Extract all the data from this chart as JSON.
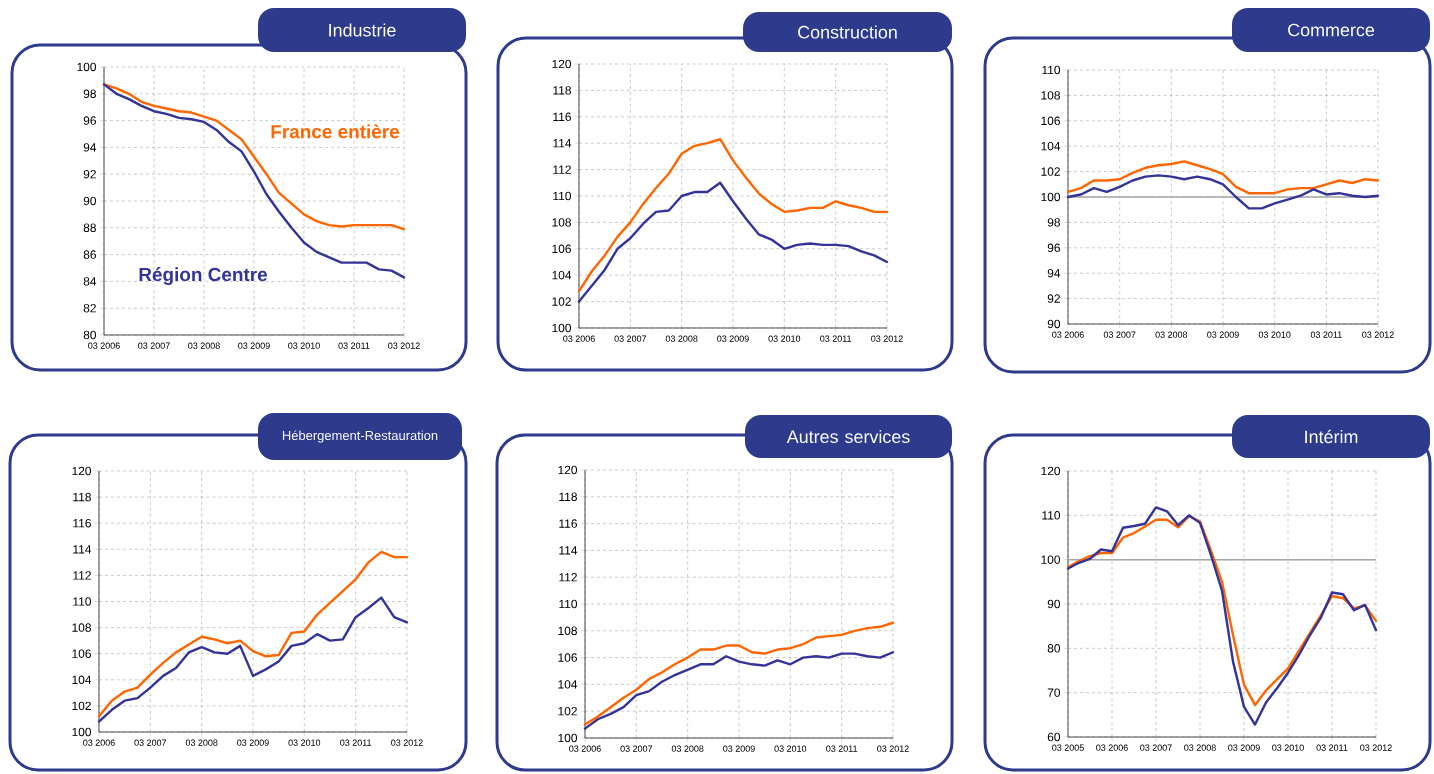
{
  "chart_data": [
    {
      "type": "line",
      "title": "Industrie",
      "grid": true,
      "x": [
        "2006-03",
        "2006-06",
        "2006-09",
        "2006-12",
        "2007-03",
        "2007-06",
        "2007-09",
        "2007-12",
        "2008-03",
        "2008-06",
        "2008-09",
        "2008-12",
        "2009-03",
        "2009-06",
        "2009-09",
        "2009-12",
        "2010-03",
        "2010-06",
        "2010-09",
        "2010-12",
        "2011-03",
        "2011-06",
        "2011-09",
        "2011-12",
        "2012-03"
      ],
      "xlim": [
        "2006-03",
        "2012-03"
      ],
      "xticks": [
        {
          "value": "2006-03",
          "label": "03 2006"
        },
        {
          "value": "2007-03",
          "label": "03 2007"
        },
        {
          "value": "2008-03",
          "label": "03 2008"
        },
        {
          "value": "2009-03",
          "label": "03 2009"
        },
        {
          "value": "2010-03",
          "label": "03 2010"
        },
        {
          "value": "2011-03",
          "label": "03 2011"
        },
        {
          "value": "2012-03",
          "label": "03 2012"
        }
      ],
      "ylim": [
        80,
        100
      ],
      "yticks": [
        80,
        82,
        84,
        86,
        88,
        90,
        92,
        94,
        96,
        98,
        100
      ],
      "series": [
        {
          "name": "France entière",
          "color": "#ff6600",
          "values": [
            98.7,
            98.4,
            98.0,
            97.4,
            97.1,
            96.9,
            96.7,
            96.6,
            96.3,
            96.0,
            95.3,
            94.6,
            93.3,
            92.0,
            90.6,
            89.8,
            89.0,
            88.5,
            88.2,
            88.1,
            88.2,
            88.2,
            88.2,
            88.2,
            87.9
          ]
        },
        {
          "name": "Région Centre",
          "color": "#333399",
          "values": [
            98.7,
            98.0,
            97.6,
            97.1,
            96.7,
            96.5,
            96.2,
            96.1,
            95.9,
            95.3,
            94.4,
            93.7,
            92.2,
            90.5,
            89.2,
            88.0,
            86.9,
            86.2,
            85.8,
            85.4,
            85.4,
            85.4,
            84.9,
            84.8,
            84.3
          ]
        }
      ]
    },
    {
      "type": "line",
      "title": "Construction",
      "grid": true,
      "x": [
        "2006-03",
        "2006-06",
        "2006-09",
        "2006-12",
        "2007-03",
        "2007-06",
        "2007-09",
        "2007-12",
        "2008-03",
        "2008-06",
        "2008-09",
        "2008-12",
        "2009-03",
        "2009-06",
        "2009-09",
        "2009-12",
        "2010-03",
        "2010-06",
        "2010-09",
        "2010-12",
        "2011-03",
        "2011-06",
        "2011-09",
        "2011-12",
        "2012-03"
      ],
      "xlim": [
        "2006-03",
        "2012-03"
      ],
      "xticks": [
        {
          "value": "2006-03",
          "label": "03 2006"
        },
        {
          "value": "2007-03",
          "label": "03 2007"
        },
        {
          "value": "2008-03",
          "label": "03 2008"
        },
        {
          "value": "2009-03",
          "label": "03 2009"
        },
        {
          "value": "2010-03",
          "label": "03 2010"
        },
        {
          "value": "2011-03",
          "label": "03 2011"
        },
        {
          "value": "2012-03",
          "label": "03 2012"
        }
      ],
      "ylim": [
        100,
        120
      ],
      "yticks": [
        100,
        102,
        104,
        106,
        108,
        110,
        112,
        114,
        116,
        118,
        120
      ],
      "series": [
        {
          "color": "#ff6600",
          "values": [
            102.8,
            104.3,
            105.5,
            106.9,
            108.0,
            109.4,
            110.6,
            111.7,
            113.2,
            113.8,
            114.0,
            114.3,
            112.7,
            111.4,
            110.2,
            109.4,
            108.8,
            108.9,
            109.1,
            109.1,
            109.6,
            109.3,
            109.1,
            108.8,
            108.8
          ]
        },
        {
          "color": "#333399",
          "values": [
            102.0,
            103.2,
            104.4,
            106.0,
            106.8,
            107.9,
            108.8,
            108.9,
            110.0,
            110.3,
            110.3,
            111.0,
            109.6,
            108.3,
            107.1,
            106.7,
            106.0,
            106.3,
            106.4,
            106.3,
            106.3,
            106.2,
            105.8,
            105.5,
            105.0
          ]
        }
      ]
    },
    {
      "type": "line",
      "title": "Commerce",
      "grid": true,
      "x": [
        "2006-03",
        "2006-06",
        "2006-09",
        "2006-12",
        "2007-03",
        "2007-06",
        "2007-09",
        "2007-12",
        "2008-03",
        "2008-06",
        "2008-09",
        "2008-12",
        "2009-03",
        "2009-06",
        "2009-09",
        "2009-12",
        "2010-03",
        "2010-06",
        "2010-09",
        "2010-12",
        "2011-03",
        "2011-06",
        "2011-09",
        "2011-12",
        "2012-03"
      ],
      "xlim": [
        "2006-03",
        "2012-03"
      ],
      "xticks": [
        {
          "value": "2006-03",
          "label": "03 2006"
        },
        {
          "value": "2007-03",
          "label": "03 2007"
        },
        {
          "value": "2008-03",
          "label": "03 2008"
        },
        {
          "value": "2009-03",
          "label": "03 2009"
        },
        {
          "value": "2010-03",
          "label": "03 2010"
        },
        {
          "value": "2011-03",
          "label": "03 2011"
        },
        {
          "value": "2012-03",
          "label": "03 2012"
        }
      ],
      "ylim": [
        90,
        110
      ],
      "yticks": [
        90,
        92,
        94,
        96,
        98,
        100,
        102,
        104,
        106,
        108,
        110
      ],
      "ref_lines": [
        {
          "axis": "y",
          "value": 100,
          "color": "#a6a6a6"
        }
      ],
      "series": [
        {
          "color": "#ff6600",
          "values": [
            100.4,
            100.7,
            101.3,
            101.3,
            101.4,
            101.9,
            102.3,
            102.5,
            102.6,
            102.8,
            102.5,
            102.2,
            101.8,
            100.8,
            100.3,
            100.3,
            100.3,
            100.6,
            100.7,
            100.7,
            101.0,
            101.3,
            101.1,
            101.4,
            101.3
          ]
        },
        {
          "color": "#333399",
          "values": [
            100.0,
            100.2,
            100.7,
            100.4,
            100.8,
            101.3,
            101.6,
            101.7,
            101.6,
            101.4,
            101.6,
            101.4,
            101.0,
            100.0,
            99.1,
            99.1,
            99.5,
            99.8,
            100.1,
            100.6,
            100.2,
            100.3,
            100.1,
            100.0,
            100.1
          ]
        }
      ]
    },
    {
      "type": "line",
      "title": "Hébergement-Restauration",
      "grid": true,
      "x": [
        "2006-03",
        "2006-06",
        "2006-09",
        "2006-12",
        "2007-03",
        "2007-06",
        "2007-09",
        "2007-12",
        "2008-03",
        "2008-06",
        "2008-09",
        "2008-12",
        "2009-03",
        "2009-06",
        "2009-09",
        "2009-12",
        "2010-03",
        "2010-06",
        "2010-09",
        "2010-12",
        "2011-03",
        "2011-06",
        "2011-09",
        "2011-12",
        "2012-03"
      ],
      "xlim": [
        "2006-03",
        "2012-03"
      ],
      "xticks": [
        {
          "value": "2006-03",
          "label": "03 2006"
        },
        {
          "value": "2007-03",
          "label": "03 2007"
        },
        {
          "value": "2008-03",
          "label": "03 2008"
        },
        {
          "value": "2009-03",
          "label": "03 2009"
        },
        {
          "value": "2010-03",
          "label": "03 2010"
        },
        {
          "value": "2011-03",
          "label": "03 2011"
        },
        {
          "value": "2012-03",
          "label": "03 2012"
        }
      ],
      "ylim": [
        100,
        120
      ],
      "yticks": [
        100,
        102,
        104,
        106,
        108,
        110,
        112,
        114,
        116,
        118,
        120
      ],
      "series": [
        {
          "color": "#ff6600",
          "values": [
            101.2,
            102.4,
            103.1,
            103.4,
            104.4,
            105.3,
            106.1,
            106.7,
            107.3,
            107.1,
            106.8,
            107.0,
            106.2,
            105.8,
            105.9,
            107.6,
            107.7,
            109.0,
            109.9,
            110.8,
            111.7,
            113.0,
            113.8,
            113.4,
            113.4
          ]
        },
        {
          "color": "#333399",
          "values": [
            100.8,
            101.7,
            102.4,
            102.6,
            103.4,
            104.3,
            104.9,
            106.1,
            106.5,
            106.1,
            106.0,
            106.6,
            104.3,
            104.8,
            105.4,
            106.6,
            106.8,
            107.5,
            107.0,
            107.1,
            108.8,
            109.5,
            110.3,
            108.8,
            108.4
          ]
        }
      ]
    },
    {
      "type": "line",
      "title": "Autres services",
      "grid": true,
      "x": [
        "2006-03",
        "2006-06",
        "2006-09",
        "2006-12",
        "2007-03",
        "2007-06",
        "2007-09",
        "2007-12",
        "2008-03",
        "2008-06",
        "2008-09",
        "2008-12",
        "2009-03",
        "2009-06",
        "2009-09",
        "2009-12",
        "2010-03",
        "2010-06",
        "2010-09",
        "2010-12",
        "2011-03",
        "2011-06",
        "2011-09",
        "2011-12",
        "2012-03"
      ],
      "xlim": [
        "2006-03",
        "2012-03"
      ],
      "xticks": [
        {
          "value": "2006-03",
          "label": "03 2006"
        },
        {
          "value": "2007-03",
          "label": "03 2007"
        },
        {
          "value": "2008-03",
          "label": "03 2008"
        },
        {
          "value": "2009-03",
          "label": "03 2009"
        },
        {
          "value": "2010-03",
          "label": "03 2010"
        },
        {
          "value": "2011-03",
          "label": "03 2011"
        },
        {
          "value": "2012-03",
          "label": "03 2012"
        }
      ],
      "ylim": [
        100,
        120
      ],
      "yticks": [
        100,
        102,
        104,
        106,
        108,
        110,
        112,
        114,
        116,
        118,
        120
      ],
      "series": [
        {
          "color": "#ff6600",
          "values": [
            101.0,
            101.6,
            102.3,
            103.0,
            103.6,
            104.4,
            104.9,
            105.5,
            106.0,
            106.6,
            106.6,
            106.9,
            106.9,
            106.4,
            106.3,
            106.6,
            106.7,
            107.0,
            107.5,
            107.6,
            107.7,
            108.0,
            108.2,
            108.3,
            108.6
          ]
        },
        {
          "color": "#333399",
          "values": [
            100.7,
            101.4,
            101.8,
            102.3,
            103.2,
            103.5,
            104.2,
            104.7,
            105.1,
            105.5,
            105.5,
            106.1,
            105.7,
            105.5,
            105.4,
            105.8,
            105.5,
            106.0,
            106.1,
            106.0,
            106.3,
            106.3,
            106.1,
            106.0,
            106.4
          ]
        }
      ]
    },
    {
      "type": "line",
      "title": "Intérim",
      "grid": true,
      "x": [
        "2005-03",
        "2005-06",
        "2005-09",
        "2005-12",
        "2006-03",
        "2006-06",
        "2006-09",
        "2006-12",
        "2007-03",
        "2007-06",
        "2007-09",
        "2007-12",
        "2008-03",
        "2008-06",
        "2008-09",
        "2008-12",
        "2009-03",
        "2009-06",
        "2009-09",
        "2009-12",
        "2010-03",
        "2010-06",
        "2010-09",
        "2010-12",
        "2011-03",
        "2011-06",
        "2011-09",
        "2011-12",
        "2012-03"
      ],
      "xlim": [
        "2005-03",
        "2012-03"
      ],
      "xticks": [
        {
          "value": "2005-03",
          "label": "03 2005"
        },
        {
          "value": "2006-03",
          "label": "03 2006"
        },
        {
          "value": "2007-03",
          "label": "03 2007"
        },
        {
          "value": "2008-03",
          "label": "03 2008"
        },
        {
          "value": "2009-03",
          "label": "03 2009"
        },
        {
          "value": "2010-03",
          "label": "03 2010"
        },
        {
          "value": "2011-03",
          "label": "03 2011"
        },
        {
          "value": "2012-03",
          "label": "03 2012"
        }
      ],
      "ylim": [
        60,
        120
      ],
      "yticks": [
        60,
        70,
        80,
        90,
        100,
        110,
        120
      ],
      "ref_lines": [
        {
          "axis": "y",
          "value": 100,
          "color": "#a6a6a6"
        }
      ],
      "series": [
        {
          "color": "#ff6600",
          "values": [
            98.3,
            99.7,
            100.8,
            101.5,
            101.5,
            105.0,
            106.0,
            107.5,
            109.0,
            109.0,
            107.3,
            109.8,
            108.6,
            102.0,
            95.0,
            83.0,
            71.8,
            67.2,
            70.5,
            73.0,
            75.5,
            79.5,
            83.5,
            87.5,
            91.8,
            91.3,
            89.0,
            89.7,
            86.2
          ]
        },
        {
          "color": "#333399",
          "values": [
            98.0,
            99.3,
            100.2,
            102.3,
            101.9,
            107.2,
            107.6,
            108.1,
            111.8,
            110.9,
            107.8,
            110.0,
            108.3,
            101.0,
            93.0,
            77.0,
            66.8,
            62.8,
            67.8,
            71.0,
            74.5,
            78.5,
            83.0,
            87.0,
            92.6,
            92.2,
            88.6,
            89.8,
            84.1
          ]
        }
      ]
    }
  ]
}
